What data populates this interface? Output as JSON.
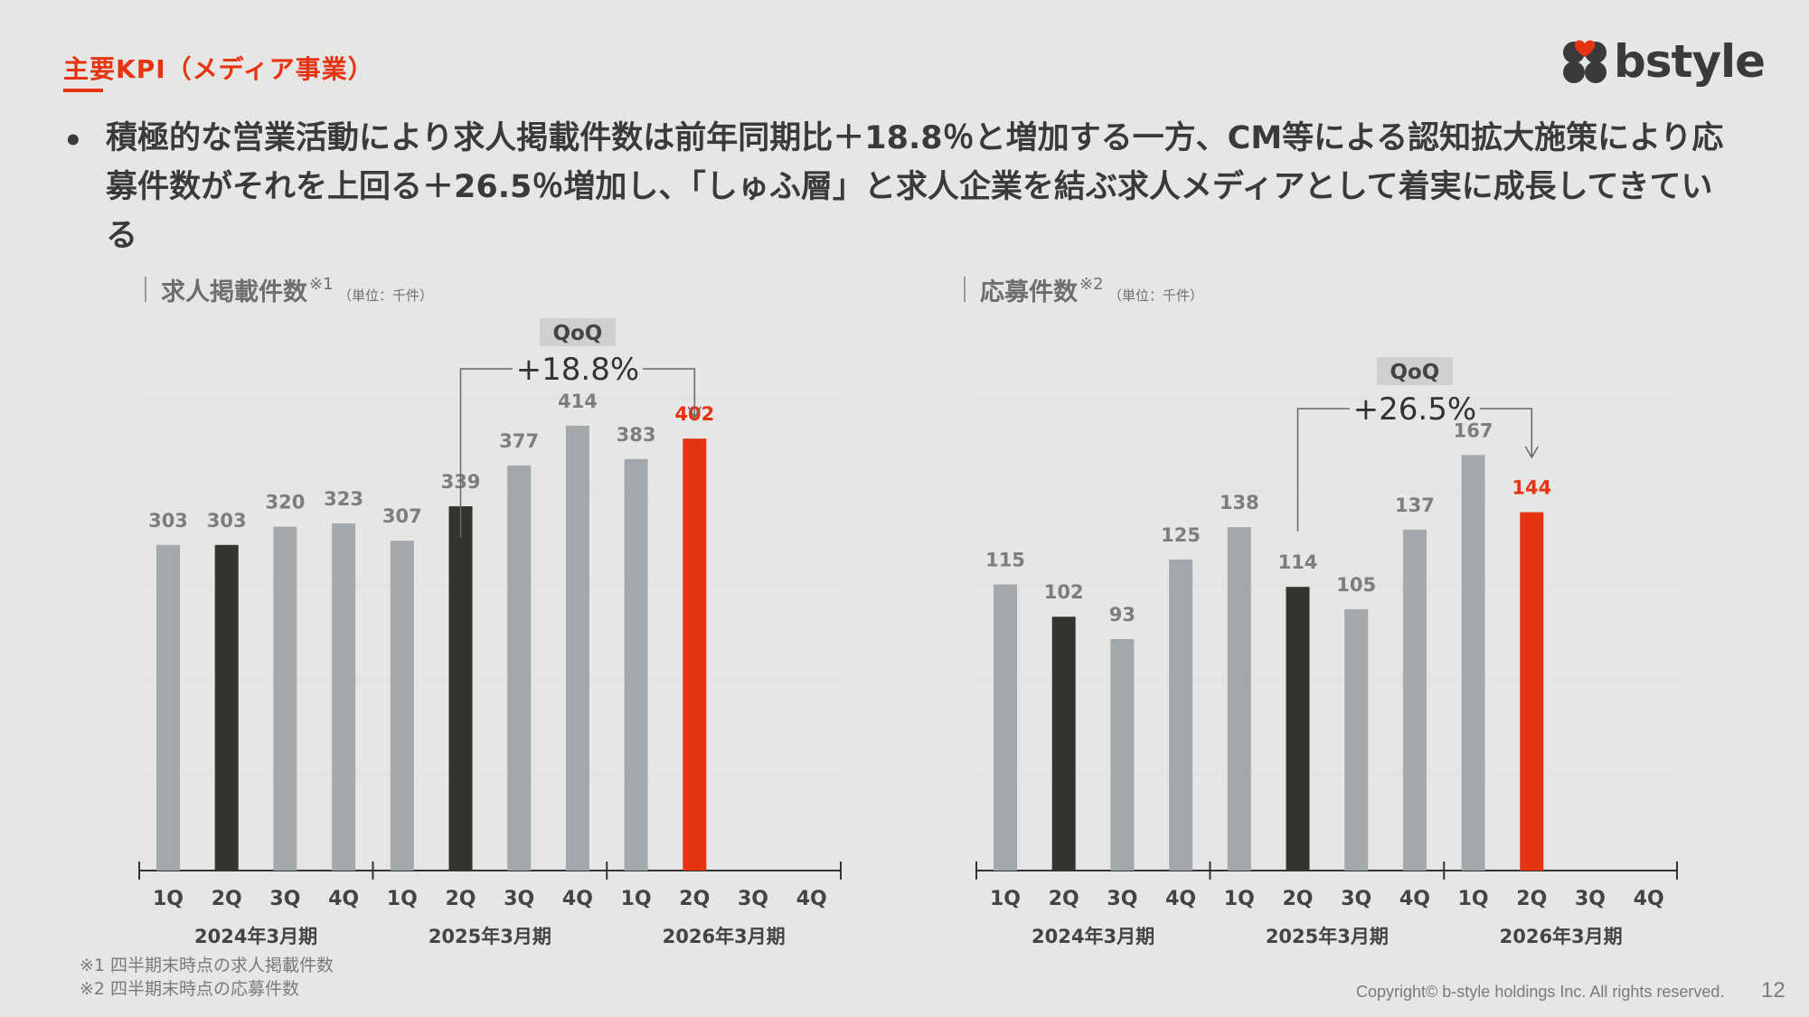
{
  "header": {
    "section_title": "主要KPI（メディア事業）",
    "logo_text": "bstyle",
    "brand_color": "#e63312"
  },
  "bullet": {
    "text": "積極的な営業活動により求人掲載件数は前年同期比＋18.8％と増加する一方、CM等による認知拡大施策により応募件数がそれを上回る＋26.5％増加し、「しゅふ層」と求人企業を結ぶ求人メディアとして着実に成長してきている"
  },
  "colors": {
    "gray_bar": "#a3a8ad",
    "dark_bar": "#333330",
    "red_bar": "#e63312",
    "label_gray": "#7d7d7d"
  },
  "chart_data": [
    {
      "type": "bar",
      "title": "求人掲載件数",
      "title_note": "※1",
      "unit": "（単位：千件）",
      "quarters": [
        "1Q",
        "2Q",
        "3Q",
        "4Q",
        "1Q",
        "2Q",
        "3Q",
        "4Q",
        "1Q",
        "2Q",
        "3Q",
        "4Q"
      ],
      "fiscal_years": [
        "2024年3月期",
        "2025年3月期",
        "2026年3月期"
      ],
      "values": [
        303,
        303,
        320,
        323,
        307,
        339,
        377,
        414,
        383,
        402,
        null,
        null
      ],
      "bar_kind": [
        "gray",
        "dark",
        "gray",
        "gray",
        "gray",
        "dark",
        "gray",
        "gray",
        "gray",
        "red",
        null,
        null
      ],
      "ylim": [
        0,
        440
      ],
      "qoq_label": "QoQ",
      "qoq_value": "+18.8%"
    },
    {
      "type": "bar",
      "title": "応募件数",
      "title_note": "※2",
      "unit": "（単位：千件）",
      "quarters": [
        "1Q",
        "2Q",
        "3Q",
        "4Q",
        "1Q",
        "2Q",
        "3Q",
        "4Q",
        "1Q",
        "2Q",
        "3Q",
        "4Q"
      ],
      "fiscal_years": [
        "2024年3月期",
        "2025年3月期",
        "2026年3月期"
      ],
      "values": [
        115,
        102,
        93,
        125,
        138,
        114,
        105,
        137,
        167,
        144,
        null,
        null
      ],
      "bar_kind": [
        "gray",
        "dark",
        "gray",
        "gray",
        "gray",
        "dark",
        "gray",
        "gray",
        "gray",
        "red",
        null,
        null
      ],
      "ylim": [
        0,
        190
      ],
      "qoq_label": "QoQ",
      "qoq_value": "+26.5%"
    }
  ],
  "footnotes": {
    "note1": "※1 四半期末時点の求人掲載件数",
    "note2": "※2 四半期末時点の応募件数"
  },
  "footer": {
    "copyright": "Copyright© b-style holdings Inc. All rights reserved.",
    "page_number": "12"
  }
}
